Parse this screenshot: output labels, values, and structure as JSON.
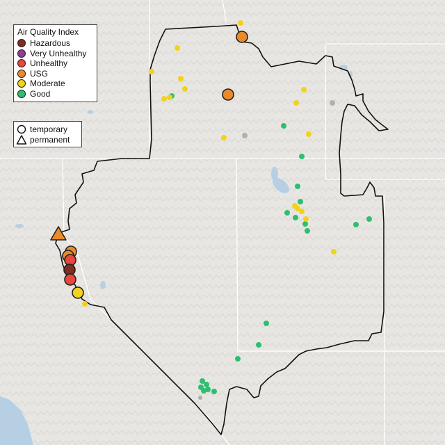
{
  "legend": {
    "title": "Air Quality Index",
    "categories": [
      {
        "label": "Hazardous",
        "color": "#7e2d1f"
      },
      {
        "label": "Very Unhealthy",
        "color": "#8f3f97"
      },
      {
        "label": "Unhealthy",
        "color": "#e8473e"
      },
      {
        "label": "USG",
        "color": "#e98a2c"
      },
      {
        "label": "Moderate",
        "color": "#f2d21b"
      },
      {
        "label": "Good",
        "color": "#2dbf6f"
      }
    ]
  },
  "monitor_legend": {
    "items": [
      {
        "label": "temporary",
        "shape": "circle-icon"
      },
      {
        "label": "permanent",
        "shape": "triangle-icon"
      }
    ]
  },
  "map": {
    "basemap_colors": {
      "land": "#e8e6e3",
      "water": "#b7cfe3",
      "relief": "#d9d7d3",
      "boundary": "#000000",
      "state_lines": "#ffffff"
    },
    "region_outline": "#111111",
    "unknown_color": "#b0b0b0"
  }
}
